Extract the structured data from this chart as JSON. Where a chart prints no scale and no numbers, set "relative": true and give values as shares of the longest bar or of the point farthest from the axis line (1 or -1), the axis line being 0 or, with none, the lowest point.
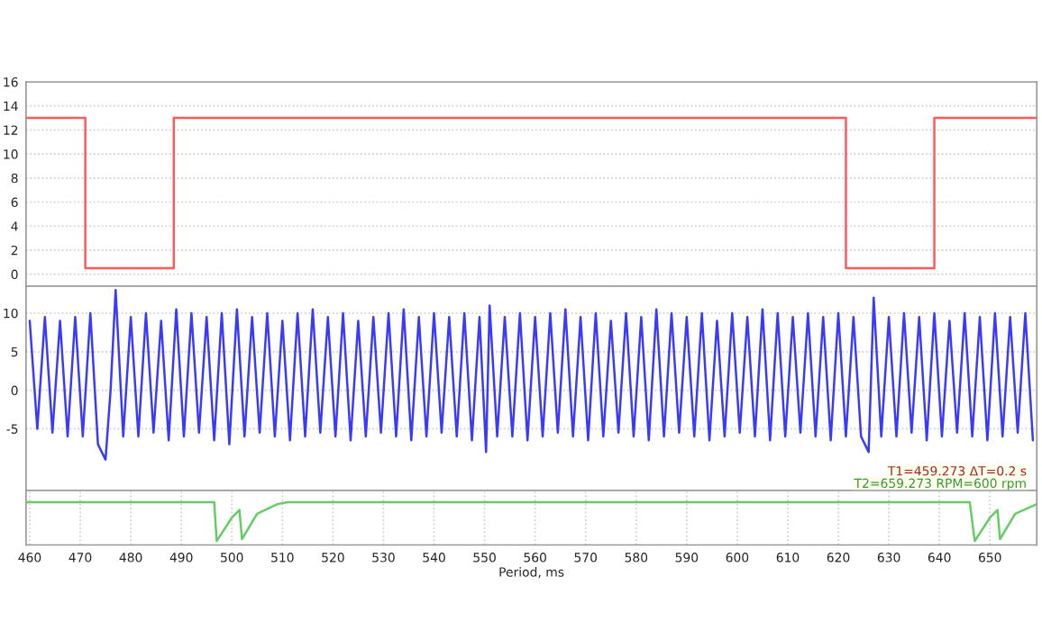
{
  "chart_data": [
    {
      "type": "line",
      "xlim": [
        459.273,
        659.273
      ],
      "ylim": [
        -1,
        16
      ],
      "yticks": [
        0,
        2,
        4,
        6,
        8,
        10,
        12,
        14,
        16
      ],
      "grid": true,
      "tick_labels": "y",
      "series": [
        {
          "color": "#ff5a5a",
          "x": [
            459.273,
            471,
            471,
            488.5,
            488.5,
            621.5,
            621.5,
            639,
            639,
            659.273
          ],
          "values": [
            13,
            13,
            0.5,
            0.5,
            13,
            13,
            0.5,
            0.5,
            13,
            13
          ]
        }
      ]
    },
    {
      "type": "line",
      "xlim": [
        459.273,
        659.273
      ],
      "ylim": [
        -13,
        13.5
      ],
      "yticks": [
        -5,
        0,
        5,
        10
      ],
      "grid": true,
      "tick_labels": "y",
      "annotations": [
        "T1=459.273 ΔT=0.2 s",
        "T2=659.273 RPM=600 rpm"
      ],
      "series": [
        {
          "color": "#3a3aff",
          "x": [
            460,
            461.5,
            463,
            464.5,
            466,
            467.5,
            469,
            470.5,
            472,
            473.5,
            475,
            476,
            477,
            478.5,
            480,
            481.5,
            483,
            484.5,
            486,
            487.5,
            489,
            490.5,
            492,
            493.5,
            495,
            496.5,
            498,
            499.5,
            501,
            502.5,
            504,
            505.5,
            507,
            508.5,
            510,
            511.5,
            513,
            514.5,
            516,
            517.5,
            519,
            520.5,
            522,
            523.5,
            525,
            526.5,
            528,
            529.5,
            531,
            532.5,
            534,
            535.5,
            537,
            538.5,
            540,
            541.5,
            543,
            544.5,
            546,
            547.5,
            549,
            550.3,
            551,
            552.5,
            554,
            555.5,
            557,
            558.5,
            560,
            561.5,
            563,
            564.5,
            566,
            567.5,
            569,
            570.5,
            572,
            573.5,
            575,
            576.5,
            578,
            579.5,
            581,
            582.5,
            584,
            585.5,
            587,
            588.5,
            590,
            591.5,
            593,
            594.5,
            596,
            597.5,
            599,
            600.5,
            602,
            603.5,
            605,
            606.5,
            608,
            609.5,
            611,
            612.5,
            614,
            615.5,
            617,
            618.5,
            620,
            621.5,
            623,
            624.5,
            626,
            627,
            628.5,
            630,
            631.5,
            633,
            634.5,
            636,
            637.5,
            639,
            640.5,
            642,
            643.5,
            645,
            646.5,
            648,
            649.5,
            651,
            652.5,
            654,
            655.5,
            657,
            658.5
          ],
          "values": [
            9,
            -5,
            9.5,
            -5.5,
            9,
            -6,
            9.5,
            -6,
            10,
            -7,
            -9,
            0,
            13,
            -6,
            9.5,
            -6,
            10,
            -5.5,
            9,
            -6.5,
            10.5,
            -6,
            10,
            -5.5,
            9.5,
            -6.5,
            10,
            -7,
            10.5,
            -6,
            9.5,
            -5.5,
            10,
            -6,
            9,
            -6.5,
            10,
            -6,
            10.5,
            -5.5,
            9.5,
            -6,
            10,
            -6.5,
            9,
            -6,
            9.5,
            -5.5,
            10,
            -6,
            10.5,
            -6.5,
            9.5,
            -6,
            10,
            -5.5,
            9.5,
            -6,
            10,
            -6.5,
            9.5,
            -8,
            11,
            -6,
            9.5,
            -6,
            10,
            -6.5,
            9.5,
            -6,
            10,
            -5.5,
            10.5,
            -6,
            9.5,
            -6.5,
            10,
            -6,
            9,
            -5.5,
            10,
            -6,
            9.5,
            -6.5,
            10.5,
            -6,
            10,
            -5.5,
            9.5,
            -6,
            10,
            -6.5,
            9,
            -6,
            10,
            -5.5,
            9.5,
            -6,
            10.5,
            -6.5,
            10,
            -6,
            9.5,
            -5.5,
            10,
            -6,
            9.5,
            -6.5,
            10,
            -6,
            9.5,
            -6,
            -8,
            12,
            -6,
            9.5,
            -6,
            10,
            -5.5,
            9.5,
            -6.5,
            10,
            -6,
            9,
            -5.5,
            10,
            -6,
            9.5,
            -6.5,
            10,
            -6,
            9.5,
            -5.5,
            10,
            -6.5
          ]
        }
      ]
    },
    {
      "type": "line",
      "relative": true,
      "xlim": [
        459.273,
        659.273
      ],
      "xticks": [
        460,
        470,
        480,
        490,
        500,
        510,
        520,
        530,
        540,
        550,
        560,
        570,
        580,
        590,
        600,
        610,
        620,
        630,
        640,
        650
      ],
      "xlabel": "Period, ms",
      "grid": "x",
      "tick_labels": "x",
      "series": [
        {
          "color": "#66cc66",
          "x": [
            459.273,
            496.5,
            497,
            500,
            501.5,
            502,
            505,
            509,
            511,
            646,
            647,
            650,
            651.5,
            652,
            655,
            659.273
          ],
          "values": [
            1,
            1,
            0,
            0.6,
            0.8,
            0.05,
            0.7,
            0.95,
            1,
            1,
            0,
            0.6,
            0.8,
            0.05,
            0.7,
            0.95
          ]
        }
      ]
    }
  ]
}
